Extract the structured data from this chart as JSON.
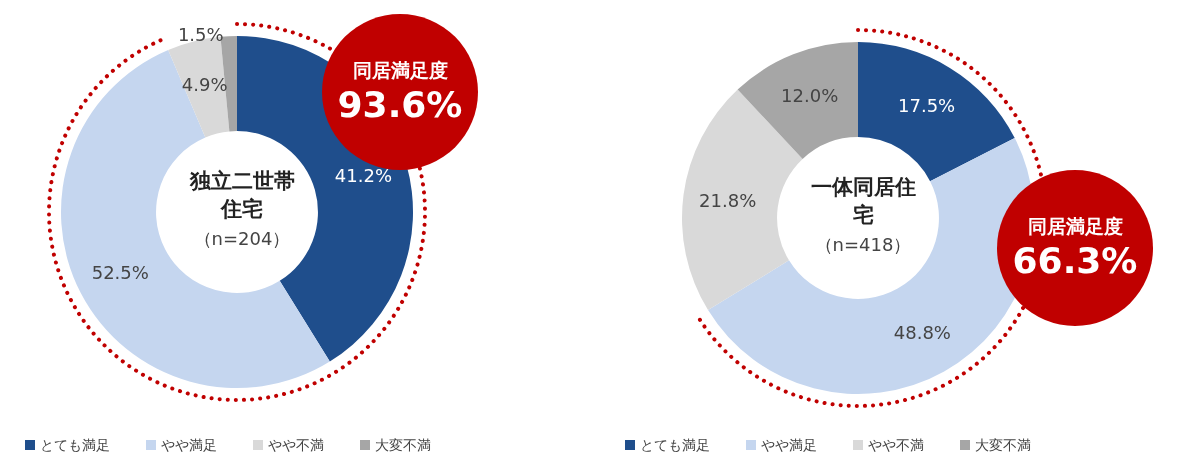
{
  "chart_data": [
    {
      "type": "donut",
      "title": "独立二世帯住宅",
      "subtitle": "（n=204）",
      "categories": [
        "とても満足",
        "やや満足",
        "やや不満",
        "大変不満"
      ],
      "values": [
        41.2,
        52.5,
        4.9,
        1.5
      ],
      "value_labels": [
        "41.2%",
        "52.5%",
        "4.9%",
        "1.5%"
      ],
      "colors": [
        "#1f4e8c",
        "#c5d6ef",
        "#d9d9d9",
        "#a6a6a6"
      ],
      "legend": "bottom left",
      "annotations": [
        "同居満足度",
        "93.6%"
      ]
    },
    {
      "type": "donut",
      "title": "一体同居住宅",
      "subtitle": "（n=418）",
      "categories": [
        "とても満足",
        "やや満足",
        "やや不満",
        "大変不満"
      ],
      "values": [
        17.5,
        48.8,
        21.8,
        12.0
      ],
      "value_labels": [
        "17.5%",
        "48.8%",
        "21.8%",
        "12.0%"
      ],
      "colors": [
        "#1f4e8c",
        "#c5d6ef",
        "#d9d9d9",
        "#a6a6a6"
      ],
      "legend": "bottom left",
      "annotations": [
        "同居満足度",
        "66.3%"
      ]
    }
  ]
}
